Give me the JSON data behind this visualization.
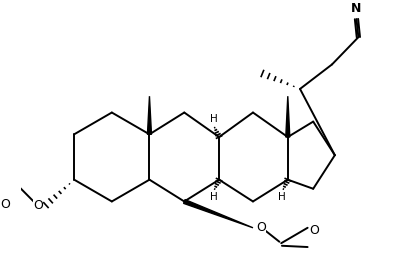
{
  "background": "#ffffff",
  "line_color": "#000000",
  "line_width": 1.4,
  "fig_width": 4.06,
  "fig_height": 2.74,
  "dpi": 100,
  "xlim": [
    0,
    10.2
  ],
  "ylim": [
    0,
    7.2
  ]
}
